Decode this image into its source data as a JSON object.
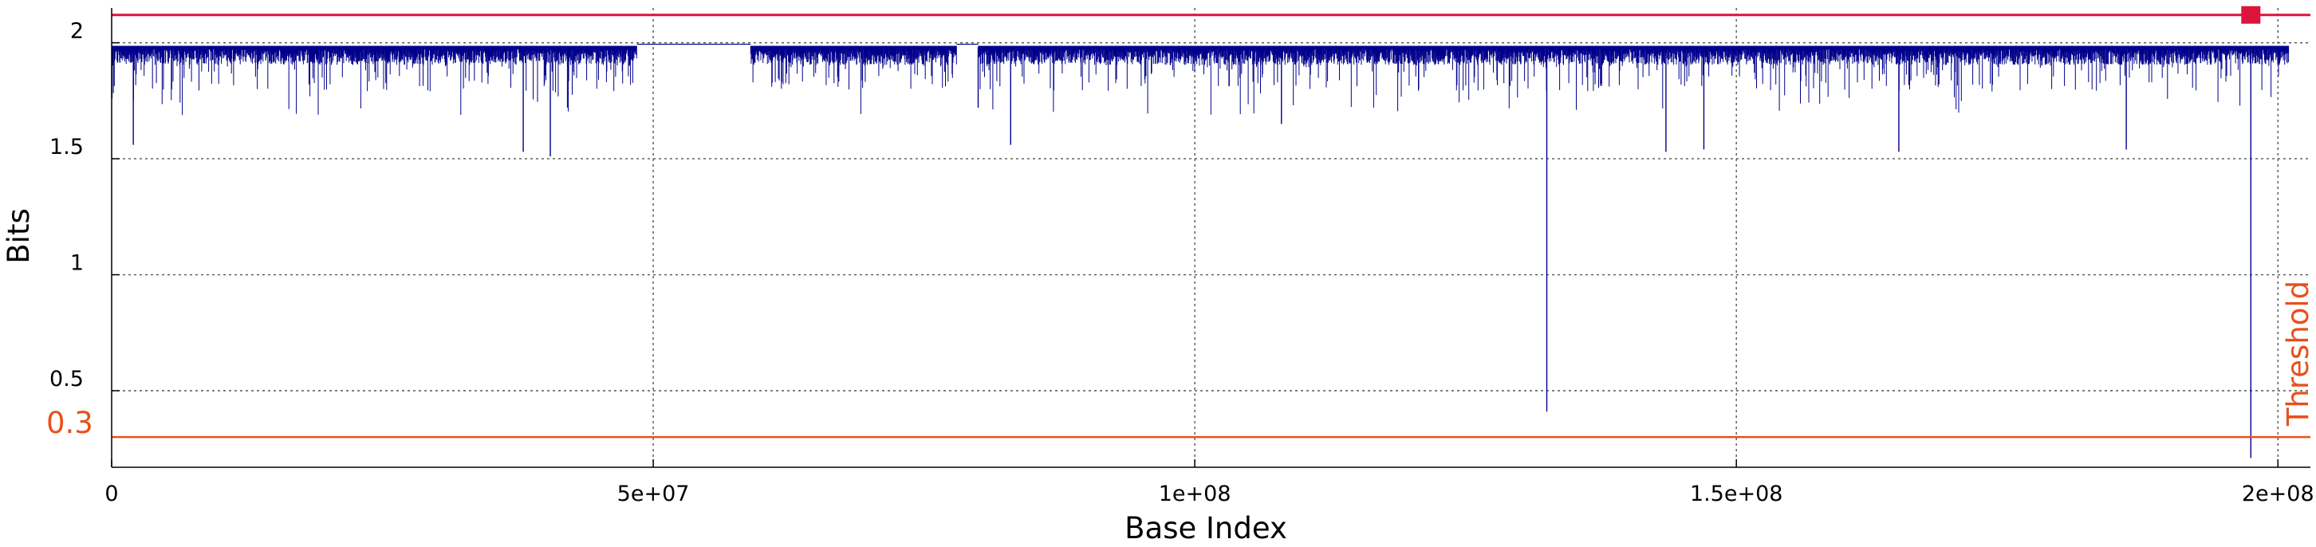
{
  "chart_data": {
    "type": "line",
    "xlabel": "Base Index",
    "ylabel": "Bits",
    "xlim": [
      0,
      203000000
    ],
    "ylim": [
      0.17,
      2.15
    ],
    "x_ticks": [
      {
        "value": 0,
        "label": "0"
      },
      {
        "value": 50000000,
        "label": "5e+07"
      },
      {
        "value": 100000000,
        "label": "1e+08"
      },
      {
        "value": 150000000,
        "label": "1.5e+08"
      },
      {
        "value": 200000000,
        "label": "2e+08"
      }
    ],
    "y_ticks": [
      {
        "value": 0.5,
        "label": "0.5"
      },
      {
        "value": 1,
        "label": "1"
      },
      {
        "value": 1.5,
        "label": "1.5"
      },
      {
        "value": 2,
        "label": "2"
      }
    ],
    "grid": true,
    "series": [
      {
        "color": "#00008b",
        "baseline": 1.98,
        "noise_floor": 1.9,
        "gaps": [
          [
            48500000,
            59000000
          ],
          [
            78000000,
            80000000
          ]
        ],
        "dips": [
          {
            "x": 2000000,
            "y": 1.56
          },
          {
            "x": 38000000,
            "y": 1.53
          },
          {
            "x": 40500000,
            "y": 1.51
          },
          {
            "x": 80000000,
            "y": 1.72
          },
          {
            "x": 83000000,
            "y": 1.56
          },
          {
            "x": 108000000,
            "y": 1.65
          },
          {
            "x": 132500000,
            "y": 0.41
          },
          {
            "x": 143500000,
            "y": 1.53
          },
          {
            "x": 147000000,
            "y": 1.54
          },
          {
            "x": 165000000,
            "y": 1.53
          },
          {
            "x": 186000000,
            "y": 1.54
          },
          {
            "x": 197500000,
            "y": 0.21
          }
        ]
      }
    ],
    "threshold": {
      "value": 0.3,
      "label": "0.3",
      "text": "Threshold",
      "color": "#e8501c"
    },
    "top_marker": {
      "value": 2.12,
      "x": 197500000,
      "color": "#dc143c"
    }
  }
}
